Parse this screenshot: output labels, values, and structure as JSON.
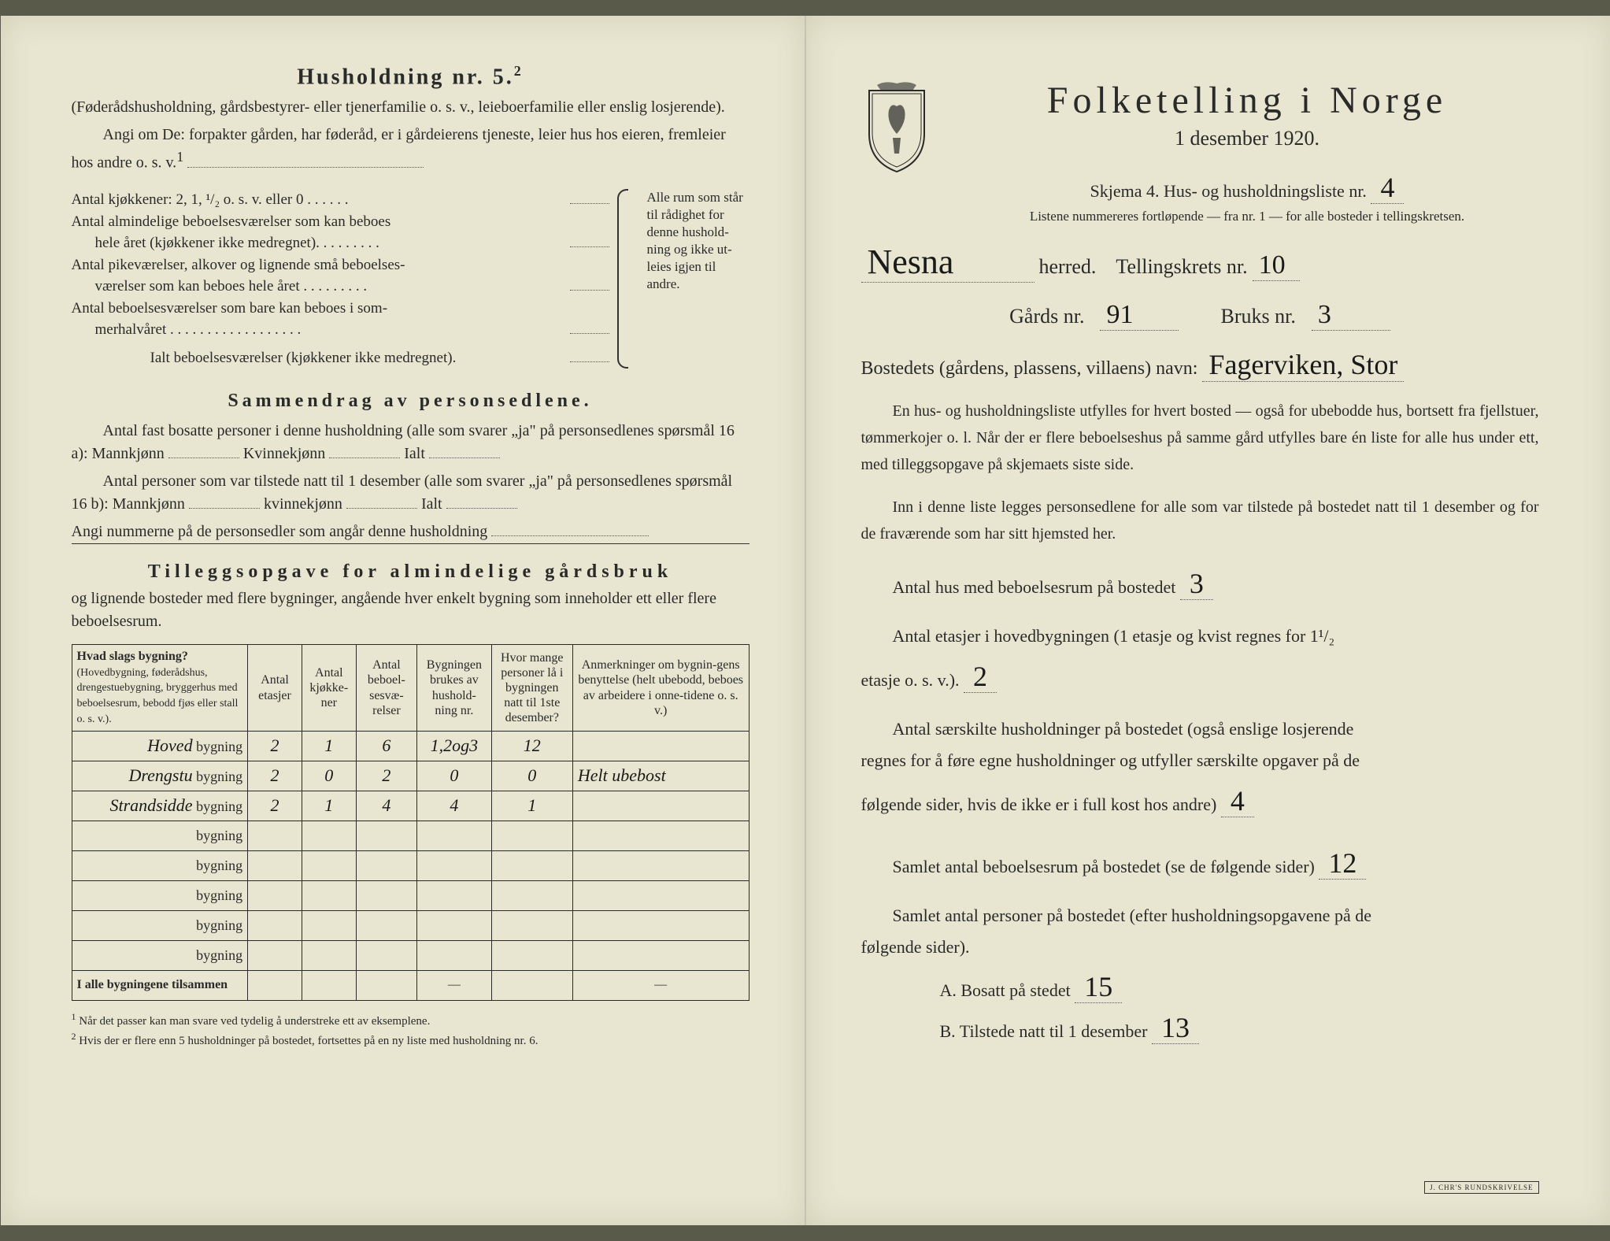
{
  "left": {
    "heading": "Husholdning nr. 5.",
    "heading_sup": "2",
    "sub1": "(Føderådshusholdning, gårdsbestyrer- eller tjenerfamilie o. s. v., leieboerfamilie eller enslig losjerende).",
    "sub2a": "Angi om De:",
    "sub2b": "forpakter gården, har føderåd, er i gårdeierens tjeneste, leier hus hos eieren, fremleier hos andre o. s. v.",
    "sub2b_sup": "1",
    "rooms": {
      "r1": "Antal kjøkkener: 2, 1, ¹/₂ o. s. v. eller 0 . . . . . .",
      "r2a": "Antal almindelige beboelsesværelser som kan beboes",
      "r2b": "hele året (kjøkkener ikke medregnet). . . . . . . . .",
      "r3a": "Antal pikeværelser, alkover og lignende små beboelses-",
      "r3b": "værelser som kan beboes hele året . . . . . . . . .",
      "r4a": "Antal beboelsesværelser som bare kan beboes i som-",
      "r4b": "merhalvåret . . . . . . . . . . . . . . . . . .",
      "r5": "Ialt beboelsesværelser (kjøkkener ikke medregnet).",
      "brace_note": "Alle rum som står til rådighet for denne hushold-ning og ikke ut-leies igjen til andre."
    },
    "summary_heading": "Sammendrag av personsedlene.",
    "summary1": "Antal fast bosatte personer i denne husholdning (alle som svarer „ja\" på personsedlenes spørsmål 16 a): Mannkjønn",
    "summary1_k": "Kvinnekjønn",
    "summary1_i": "Ialt",
    "summary2": "Antal personer som var tilstede natt til 1 desember (alle som svarer „ja\" på personsedlenes spørsmål 16 b): Mannkjønn",
    "summary2_k": "kvinnekjønn",
    "summary2_i": "Ialt",
    "summary3": "Angi nummerne på de personsedler som angår denne husholdning",
    "tillegg_heading": "Tilleggsopgave for almindelige gårdsbruk",
    "tillegg_sub": "og lignende bosteder med flere bygninger, angående hver enkelt bygning som inneholder ett eller flere beboelsesrum.",
    "table": {
      "headers": {
        "c1a": "Hvad slags bygning?",
        "c1b": "(Hovedbygning, føderådshus, drengestuebygning, bryggerhus med beboelsesrum, bebodd fjøs eller stall o. s. v.).",
        "c2": "Antal etasjer",
        "c3": "Antal kjøkke-ner",
        "c4": "Antal beboel-sesvæ-relser",
        "c5": "Bygningen brukes av hushold-ning nr.",
        "c6": "Hvor mange personer lå i bygningen natt til 1ste desember?",
        "c7": "Anmerkninger om bygnin-gens benyttelse (helt ubebodd, beboes av arbeidere i onne-tidene o. s. v.)"
      },
      "rows": [
        {
          "name_hw": "Hoved",
          "suffix": "bygning",
          "c2": "2",
          "c3": "1",
          "c4": "6",
          "c5": "1,2og3",
          "c6": "12",
          "c7": ""
        },
        {
          "name_hw": "Drengstu",
          "suffix": "bygning",
          "c2": "2",
          "c3": "0",
          "c4": "2",
          "c5": "0",
          "c6": "0",
          "c7": "Helt ubebost"
        },
        {
          "name_hw": "Strandsidde",
          "suffix": "bygning",
          "c2": "2",
          "c3": "1",
          "c4": "4",
          "c5": "4",
          "c6": "1",
          "c7": ""
        },
        {
          "name_hw": "",
          "suffix": "bygning",
          "c2": "",
          "c3": "",
          "c4": "",
          "c5": "",
          "c6": "",
          "c7": ""
        },
        {
          "name_hw": "",
          "suffix": "bygning",
          "c2": "",
          "c3": "",
          "c4": "",
          "c5": "",
          "c6": "",
          "c7": ""
        },
        {
          "name_hw": "",
          "suffix": "bygning",
          "c2": "",
          "c3": "",
          "c4": "",
          "c5": "",
          "c6": "",
          "c7": ""
        },
        {
          "name_hw": "",
          "suffix": "bygning",
          "c2": "",
          "c3": "",
          "c4": "",
          "c5": "",
          "c6": "",
          "c7": ""
        },
        {
          "name_hw": "",
          "suffix": "bygning",
          "c2": "",
          "c3": "",
          "c4": "",
          "c5": "",
          "c6": "",
          "c7": ""
        }
      ],
      "total_label": "I alle bygningene tilsammen",
      "total_dash": "—"
    },
    "footnote1": "Når det passer kan man svare ved tydelig å understreke ett av eksemplene.",
    "footnote2": "Hvis der er flere enn 5 husholdninger på bostedet, fortsettes på en ny liste med husholdning nr. 6.",
    "fn1_num": "1",
    "fn2_num": "2"
  },
  "right": {
    "title": "Folketelling i Norge",
    "date": "1 desember 1920.",
    "skjema": "Skjema 4.  Hus- og husholdningsliste nr.",
    "liste_nr_hw": "4",
    "note": "Listene nummereres fortløpende — fra nr. 1 — for alle bosteder i tellingskretsen.",
    "herred_hw": "Nesna",
    "herred_label": "herred.",
    "krets_label": "Tellingskrets nr.",
    "krets_hw": "10",
    "gards_label": "Gårds nr.",
    "gards_hw": "91",
    "bruks_label": "Bruks nr.",
    "bruks_hw": "3",
    "bosted_label": "Bostedets (gårdens, plassens, villaens) navn:",
    "bosted_hw": "Fagerviken, Stor",
    "para1": "En hus- og husholdningsliste utfylles for hvert bosted — også for ubebodde hus, bortsett fra fjellstuer, tømmerkojer o. l. Når der er flere beboelseshus på samme gård utfylles bare én liste for alle hus under ett, med tilleggsopgave på skjemaets siste side.",
    "para2": "Inn i denne liste legges personsedlene for alle som var tilstede på bostedet natt til 1 desember og for de fraværende som har sitt hjemsted her.",
    "q1": "Antal hus med beboelsesrum på bostedet",
    "a1_hw": "3",
    "q2a": "Antal etasjer i hovedbygningen (1 etasje og kvist regnes for 1¹/₂",
    "q2b": "etasje o. s. v.).",
    "a2_hw": "2",
    "q3a": "Antal særskilte husholdninger på bostedet (også enslige losjerende",
    "q3b": "regnes for å føre egne husholdninger og utfyller særskilte opgaver på de",
    "q3c": "følgende sider, hvis de ikke er i full kost hos andre)",
    "a3_hw": "4",
    "q4": "Samlet antal beboelsesrum på bostedet (se de følgende sider)",
    "a4_hw": "12",
    "q5a": "Samlet antal personer på bostedet (efter husholdningsopgavene på de",
    "q5b": "følgende sider).",
    "ab_a_label": "A.  Bosatt på stedet",
    "ab_a_hw": "15",
    "ab_b_label": "B.  Tilstede natt til 1 desember",
    "ab_b_hw": "13",
    "stamp": "J. CHR'S RUNDSKRIVELSE"
  },
  "colors": {
    "paper": "#e8e6d0",
    "text": "#2a2a2a",
    "handwriting": "#1a1a1a",
    "line": "#333333"
  }
}
